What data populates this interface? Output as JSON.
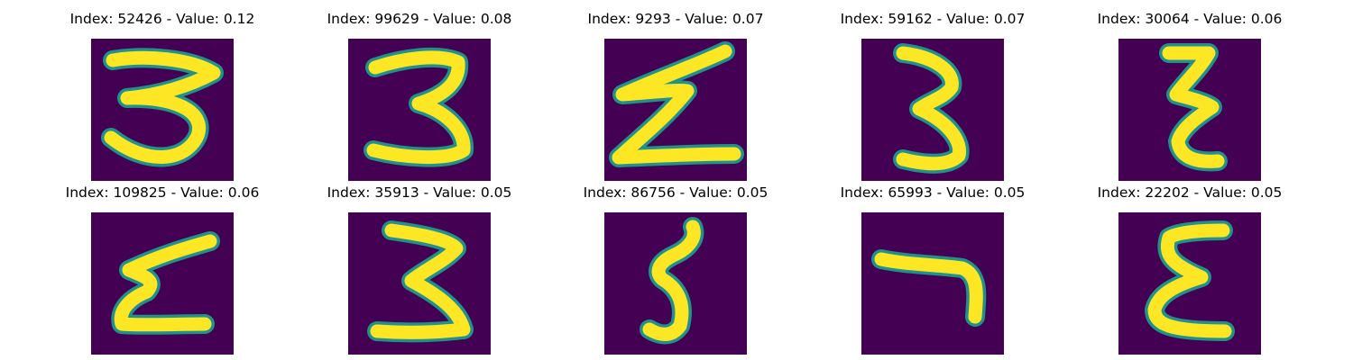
{
  "colors": {
    "background": "#440154",
    "stroke_edge": "#21918c",
    "stroke_core": "#fde725"
  },
  "panels": [
    {
      "title": "Index: 52426 - Value: 0.12"
    },
    {
      "title": "Index: 99629 - Value: 0.08"
    },
    {
      "title": "Index: 9293 - Value: 0.07"
    },
    {
      "title": "Index: 59162 - Value: 0.07"
    },
    {
      "title": "Index: 30064 - Value: 0.06"
    },
    {
      "title": "Index: 109825 - Value: 0.06"
    },
    {
      "title": "Index: 35913 - Value: 0.05"
    },
    {
      "title": "Index: 86756 - Value: 0.05"
    },
    {
      "title": "Index: 65993 - Value: 0.05"
    },
    {
      "title": "Index: 22202 - Value: 0.05"
    }
  ]
}
